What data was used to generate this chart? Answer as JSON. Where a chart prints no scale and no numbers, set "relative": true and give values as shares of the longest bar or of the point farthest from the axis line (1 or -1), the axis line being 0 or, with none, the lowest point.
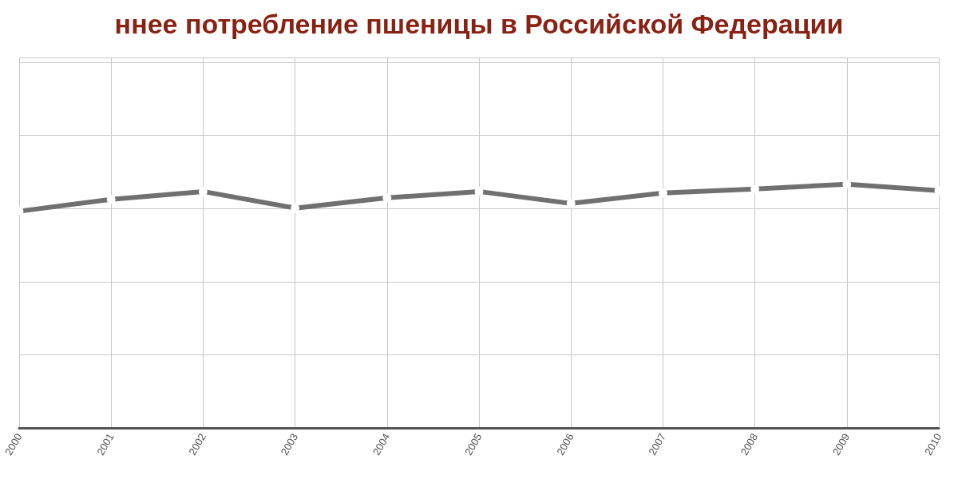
{
  "chart_data": {
    "type": "line",
    "title": "ннее потребление пшеницы в Российской Федерации",
    "relative": true,
    "categories": [
      "2000",
      "2001",
      "2002",
      "2003",
      "2004",
      "2005",
      "2006",
      "2007",
      "2008",
      "2009",
      "2010"
    ],
    "series": [
      {
        "color": "#707070",
        "values": [
          0.889,
          0.938,
          0.97,
          0.902,
          0.944,
          0.97,
          0.921,
          0.964,
          0.98,
          1,
          0.974
        ]
      }
    ],
    "marker": "circle",
    "grid": true,
    "line_style": "solid"
  }
}
